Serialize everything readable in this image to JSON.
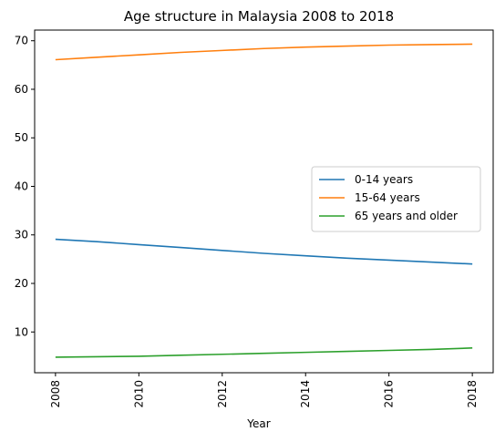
{
  "chart_data": {
    "type": "line",
    "title": "Age structure in Malaysia 2008 to 2018",
    "xlabel": "Year",
    "ylabel": "",
    "x": [
      2008,
      2009,
      2010,
      2011,
      2012,
      2013,
      2014,
      2015,
      2016,
      2017,
      2018
    ],
    "xlim": [
      2007.5,
      2018.5
    ],
    "ylim": [
      1.6,
      72.2
    ],
    "xticks": [
      2008,
      2010,
      2012,
      2014,
      2016,
      2018
    ],
    "yticks": [
      10,
      20,
      30,
      40,
      50,
      60,
      70
    ],
    "grid": false,
    "legend_position": "center-right",
    "series": [
      {
        "name": "0-14 years",
        "color": "#1f77b4",
        "values": [
          29.1,
          28.6,
          28.0,
          27.4,
          26.8,
          26.2,
          25.7,
          25.2,
          24.8,
          24.4,
          24.0
        ]
      },
      {
        "name": "15-64 years",
        "color": "#ff7f0e",
        "values": [
          66.1,
          66.6,
          67.1,
          67.6,
          68.0,
          68.4,
          68.7,
          68.9,
          69.1,
          69.2,
          69.3
        ]
      },
      {
        "name": "65 years and older",
        "color": "#2ca02c",
        "values": [
          4.8,
          4.9,
          5.0,
          5.2,
          5.4,
          5.6,
          5.8,
          6.0,
          6.2,
          6.4,
          6.7
        ]
      }
    ]
  }
}
